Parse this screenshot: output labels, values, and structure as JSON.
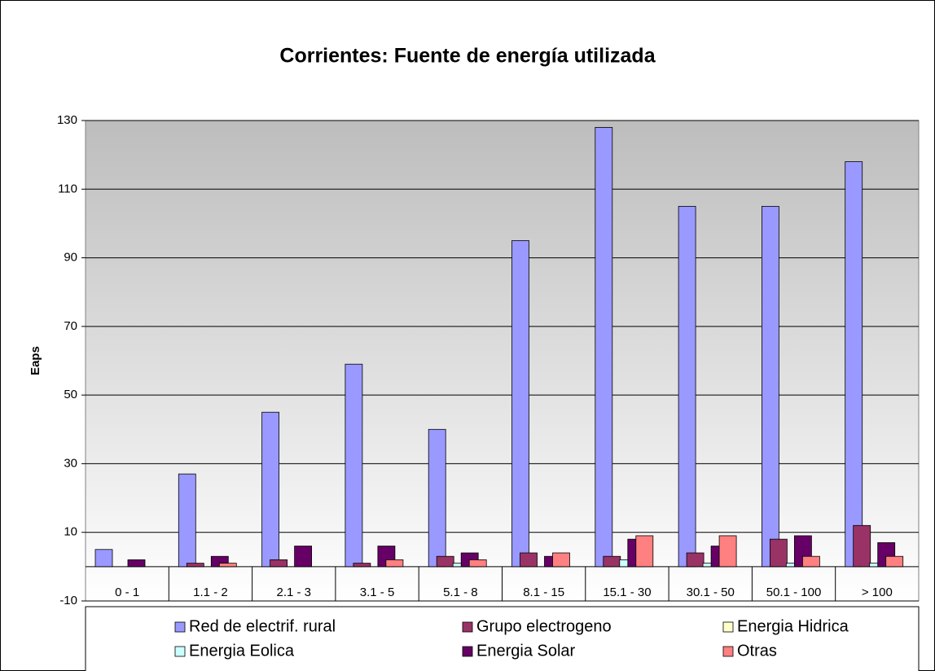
{
  "chart_data": {
    "type": "bar",
    "title": "Corrientes: Fuente de energía utilizada",
    "y_label": "Eaps",
    "categories": [
      "0 - 1",
      "1.1 - 2",
      "2.1 - 3",
      "3.1 - 5",
      "5.1 - 8",
      "8.1 - 15",
      "15.1 - 30",
      "30.1 - 50",
      "50.1 - 100",
      "> 100"
    ],
    "series": [
      {
        "name": "Red de electrif. rural",
        "color": "#9999ff",
        "values": [
          5,
          27,
          45,
          59,
          40,
          95,
          128,
          105,
          105,
          118
        ]
      },
      {
        "name": "Grupo electrogeno",
        "color": "#993366",
        "values": [
          0,
          1,
          2,
          1,
          3,
          4,
          3,
          4,
          8,
          12
        ]
      },
      {
        "name": "Energia Hidrica",
        "color": "#ffffcc",
        "values": [
          0,
          0,
          0,
          0,
          0,
          0,
          0,
          0,
          0,
          0
        ]
      },
      {
        "name": "Energia Eolica",
        "color": "#ccffff",
        "values": [
          0,
          0,
          0,
          0,
          1,
          0,
          2,
          1,
          1,
          1
        ]
      },
      {
        "name": "Energia Solar",
        "color": "#660066",
        "values": [
          2,
          3,
          6,
          6,
          4,
          3,
          8,
          6,
          9,
          7
        ]
      },
      {
        "name": "Otras",
        "color": "#ff8080",
        "values": [
          0,
          1,
          0,
          2,
          2,
          4,
          9,
          9,
          3,
          3
        ]
      }
    ],
    "ylim": [
      -10,
      130
    ],
    "yticks": [
      -10,
      10,
      30,
      50,
      70,
      90,
      110,
      130
    ],
    "grid": true
  }
}
